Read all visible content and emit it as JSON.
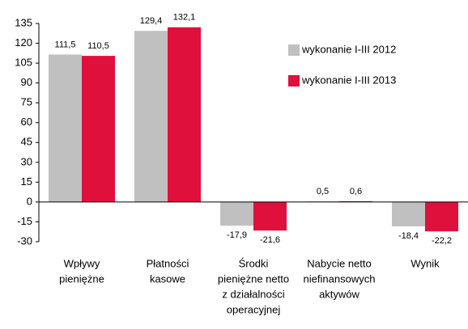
{
  "chart_data": {
    "type": "bar",
    "categories": [
      [
        "Wpływy",
        "pieniężne"
      ],
      [
        "Płatności",
        "kasowe"
      ],
      [
        "Środki",
        "pieniężne netto",
        "z działalności",
        "operacyjnej"
      ],
      [
        "Nabycie netto",
        "niefinansowych",
        "aktywów"
      ],
      [
        "Wynik"
      ]
    ],
    "series": [
      {
        "name": "wykonanie I-III 2012",
        "color": "#c0c0c0",
        "values": [
          111.5,
          129.4,
          -17.9,
          0.5,
          -18.4
        ],
        "value_labels": [
          "111,5",
          "129,4",
          "-17,9",
          "0,5",
          "-18,4"
        ]
      },
      {
        "name": "wykonanie I-III 2013",
        "color": "#e0103c",
        "values": [
          110.5,
          132.1,
          -21.6,
          0.6,
          -22.2
        ],
        "value_labels": [
          "110,5",
          "132,1",
          "-21,6",
          "0,6",
          "-22,2"
        ]
      }
    ],
    "ylim": [
      -30,
      135
    ],
    "yticks": [
      -30,
      -15,
      0,
      15,
      30,
      45,
      60,
      75,
      90,
      105,
      120,
      135
    ],
    "grid": false,
    "legend": "upper right"
  }
}
